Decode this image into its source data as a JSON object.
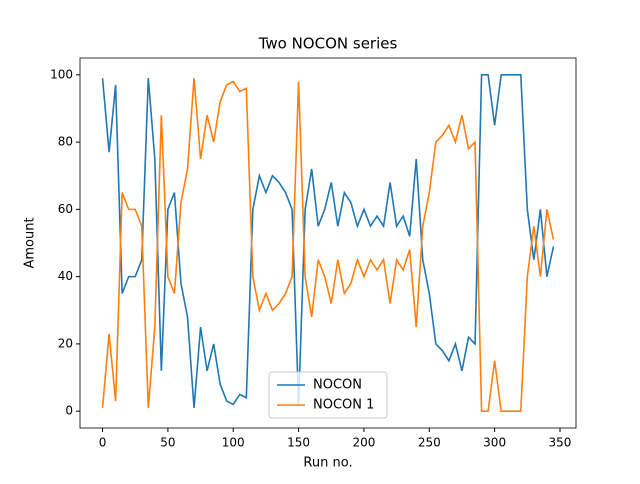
{
  "chart_data": {
    "type": "line",
    "title": "Two NOCON series",
    "x_label": "Run no.",
    "y_label": "Amount",
    "x": [
      0,
      5,
      10,
      15,
      20,
      25,
      30,
      35,
      40,
      45,
      50,
      55,
      60,
      65,
      70,
      75,
      80,
      85,
      90,
      95,
      100,
      105,
      110,
      115,
      120,
      125,
      130,
      135,
      140,
      145,
      150,
      155,
      160,
      165,
      170,
      175,
      180,
      185,
      190,
      195,
      200,
      205,
      210,
      215,
      220,
      225,
      230,
      235,
      240,
      245,
      250,
      255,
      260,
      265,
      270,
      275,
      280,
      285,
      290,
      295,
      300,
      305,
      310,
      315,
      320,
      325,
      330,
      335,
      340,
      345
    ],
    "series": [
      {
        "name": "NOCON",
        "color": "#1f77b4",
        "values": [
          99,
          77,
          97,
          35,
          40,
          40,
          45,
          99,
          75,
          12,
          60,
          65,
          38,
          28,
          1,
          25,
          12,
          20,
          8,
          3,
          2,
          5,
          4,
          60,
          70,
          65,
          70,
          68,
          65,
          60,
          2,
          60,
          72,
          55,
          60,
          68,
          55,
          65,
          62,
          55,
          60,
          55,
          58,
          55,
          68,
          55,
          58,
          52,
          75,
          45,
          35,
          20,
          18,
          15,
          20,
          12,
          22,
          20,
          100,
          100,
          85,
          100,
          100,
          100,
          100,
          60,
          45,
          60,
          40,
          49
        ]
      },
      {
        "name": "NOCON 1",
        "color": "#ff7f0e",
        "values": [
          1,
          23,
          3,
          65,
          60,
          60,
          55,
          1,
          25,
          88,
          40,
          35,
          62,
          72,
          99,
          75,
          88,
          80,
          92,
          97,
          98,
          95,
          96,
          40,
          30,
          35,
          30,
          32,
          35,
          40,
          98,
          40,
          28,
          45,
          40,
          32,
          45,
          35,
          38,
          45,
          40,
          45,
          42,
          45,
          32,
          45,
          42,
          48,
          25,
          55,
          65,
          80,
          82,
          85,
          80,
          88,
          78,
          80,
          0,
          0,
          15,
          0,
          0,
          0,
          0,
          40,
          55,
          40,
          60,
          51
        ]
      }
    ],
    "xlim": [
      -17.25,
      362.25
    ],
    "ylim": [
      -5,
      105
    ],
    "xticks": [
      0,
      50,
      100,
      150,
      200,
      250,
      300,
      350
    ],
    "yticks": [
      0,
      20,
      40,
      60,
      80,
      100
    ],
    "legend": "lower center"
  }
}
